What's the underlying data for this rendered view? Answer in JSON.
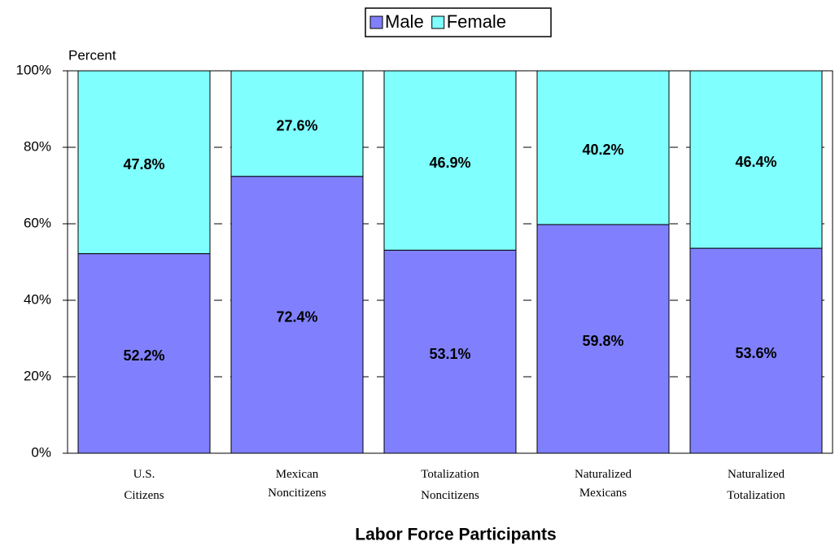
{
  "chart_data": {
    "type": "stacked_bar",
    "x_title": "Labor Force Participants",
    "y_title": "Percent",
    "categories": [
      "U.S. Citizens",
      "Mexican Noncitizens",
      "Totalization Noncitizens",
      "Naturalized Mexicans",
      "Naturalized Totalization"
    ],
    "series": [
      {
        "name": "Male",
        "color": "#8080ff",
        "values": [
          52.2,
          72.4,
          53.1,
          59.8,
          53.6
        ],
        "value_labels": [
          "52.2%",
          "72.4%",
          "53.1%",
          "59.8%",
          "53.6%"
        ]
      },
      {
        "name": "Female",
        "color": "#80ffff",
        "values": [
          47.8,
          27.6,
          46.9,
          40.2,
          46.4
        ],
        "value_labels": [
          "47.8%",
          "27.6%",
          "46.9%",
          "40.2%",
          "46.4%"
        ]
      }
    ],
    "ylim": [
      0,
      100
    ],
    "yticks": [
      {
        "value": 0,
        "label": "0%"
      },
      {
        "value": 20,
        "label": "20%"
      },
      {
        "value": 40,
        "label": "40%"
      },
      {
        "value": 60,
        "label": "60%"
      },
      {
        "value": 80,
        "label": "80%"
      },
      {
        "value": 100,
        "label": "100%"
      }
    ],
    "grid": true,
    "legend": "top"
  }
}
